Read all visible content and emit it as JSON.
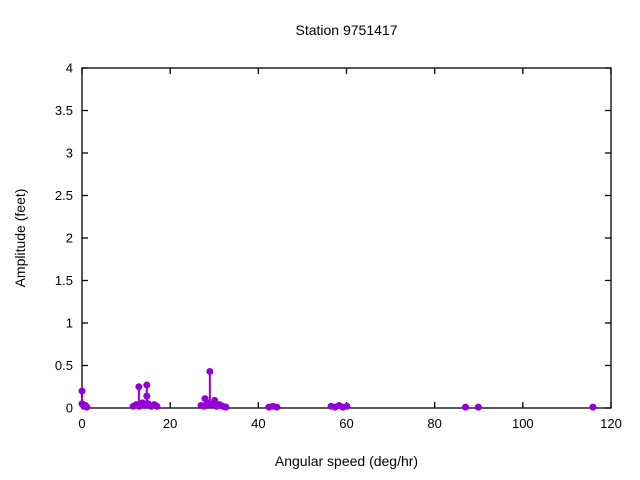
{
  "chart_data": {
    "type": "scatter",
    "style": "points-with-impulse-stems",
    "title": "Station 9751417",
    "xlabel": "Angular speed (deg/hr)",
    "ylabel": "Amplitude (feet)",
    "xlim": [
      0,
      120
    ],
    "ylim": [
      0,
      4
    ],
    "xticks": [
      0,
      20,
      40,
      60,
      80,
      100,
      120
    ],
    "yticks": [
      0,
      0.5,
      1,
      1.5,
      2,
      2.5,
      3,
      3.5,
      4
    ],
    "grid": false,
    "legend": "none",
    "point_color": "#9400d3",
    "axis_color": "#000000",
    "points": [
      [
        0.0,
        0.2
      ],
      [
        0.0,
        0.05
      ],
      [
        0.4,
        0.02
      ],
      [
        0.8,
        0.03
      ],
      [
        1.1,
        0.01
      ],
      [
        12.9,
        0.25
      ],
      [
        14.7,
        0.27
      ],
      [
        14.7,
        0.14
      ],
      [
        11.6,
        0.02
      ],
      [
        12.3,
        0.04
      ],
      [
        13.0,
        0.02
      ],
      [
        13.7,
        0.06
      ],
      [
        14.3,
        0.03
      ],
      [
        15.0,
        0.05
      ],
      [
        15.7,
        0.02
      ],
      [
        16.4,
        0.04
      ],
      [
        17.0,
        0.02
      ],
      [
        29.0,
        0.43
      ],
      [
        27.9,
        0.11
      ],
      [
        30.1,
        0.09
      ],
      [
        27.0,
        0.03
      ],
      [
        27.7,
        0.02
      ],
      [
        28.4,
        0.06
      ],
      [
        29.1,
        0.04
      ],
      [
        29.8,
        0.05
      ],
      [
        30.5,
        0.02
      ],
      [
        31.2,
        0.04
      ],
      [
        31.9,
        0.02
      ],
      [
        32.6,
        0.01
      ],
      [
        42.4,
        0.01
      ],
      [
        43.3,
        0.02
      ],
      [
        44.2,
        0.01
      ],
      [
        56.5,
        0.02
      ],
      [
        57.4,
        0.01
      ],
      [
        58.3,
        0.03
      ],
      [
        59.2,
        0.01
      ],
      [
        60.1,
        0.02
      ],
      [
        87.0,
        0.01
      ],
      [
        89.9,
        0.01
      ],
      [
        115.9,
        0.01
      ]
    ]
  }
}
